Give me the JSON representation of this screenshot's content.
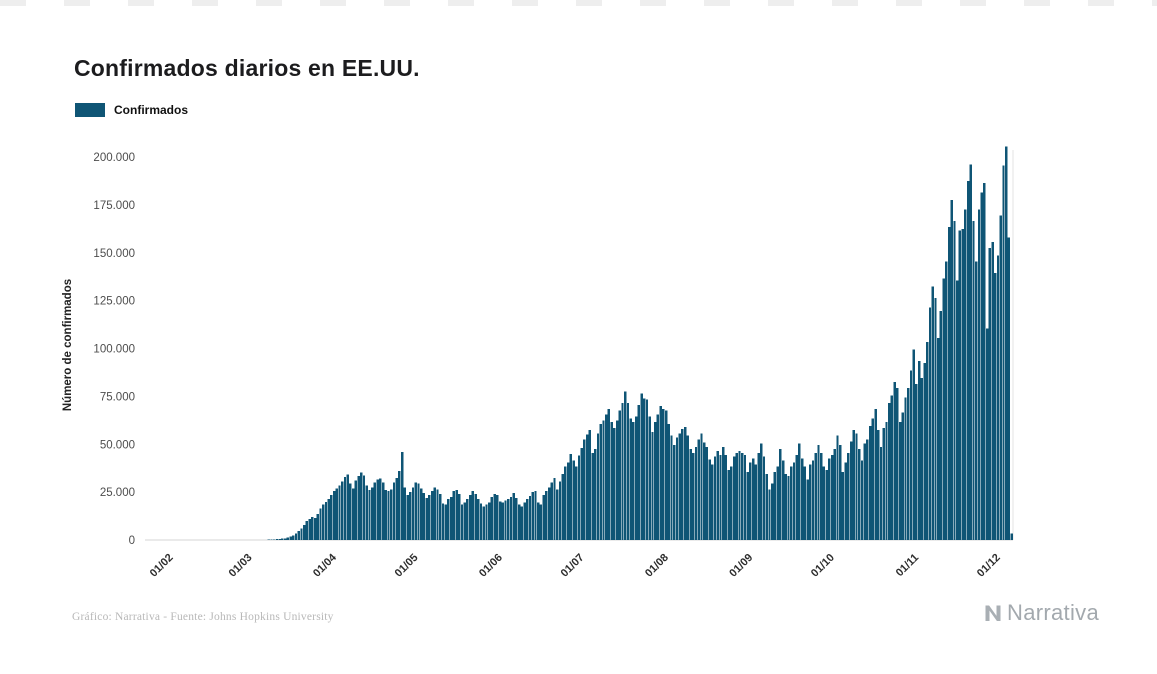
{
  "legend": {
    "items": [
      {
        "label": "Confirmados",
        "color": "#0f5575"
      }
    ]
  },
  "footer": {
    "credit": "Gráfico: Narrativa - Fuente: Johns Hopkins University",
    "brand": "Narrativa"
  },
  "chart_data": {
    "type": "bar",
    "title": "Confirmados diarios en EE.UU.",
    "xlabel": "",
    "ylabel": "Número de confirmados",
    "bar_color": "#0f5575",
    "grid": false,
    "legend_position": "top-left",
    "ylim": [
      0,
      210000
    ],
    "yticks": [
      {
        "value": 0,
        "label": "0"
      },
      {
        "value": 25000,
        "label": "25.000"
      },
      {
        "value": 50000,
        "label": "50.000"
      },
      {
        "value": 75000,
        "label": "75.000"
      },
      {
        "value": 100000,
        "label": "100.000"
      },
      {
        "value": 125000,
        "label": "125.000"
      },
      {
        "value": 150000,
        "label": "150.000"
      },
      {
        "value": 175000,
        "label": "175.000"
      },
      {
        "value": 200000,
        "label": "200.000"
      }
    ],
    "xticks": [
      {
        "index": 10,
        "label": "01/02"
      },
      {
        "index": 39,
        "label": "01/03"
      },
      {
        "index": 70,
        "label": "01/04"
      },
      {
        "index": 100,
        "label": "01/05"
      },
      {
        "index": 131,
        "label": "01/06"
      },
      {
        "index": 161,
        "label": "01/07"
      },
      {
        "index": 192,
        "label": "01/08"
      },
      {
        "index": 223,
        "label": "01/09"
      },
      {
        "index": 253,
        "label": "01/10"
      },
      {
        "index": 284,
        "label": "01/11"
      },
      {
        "index": 314,
        "label": "01/12"
      }
    ],
    "series_name": "Confirmados",
    "values": [
      1,
      0,
      1,
      0,
      3,
      0,
      0,
      0,
      2,
      3,
      1,
      0,
      3,
      0,
      2,
      1,
      1,
      0,
      0,
      2,
      1,
      2,
      1,
      3,
      0,
      1,
      2,
      0,
      3,
      1,
      5,
      6,
      4,
      3,
      8,
      6,
      10,
      14,
      18,
      25,
      30,
      45,
      70,
      90,
      120,
      170,
      230,
      330,
      420,
      550,
      700,
      900,
      1300,
      1800,
      2300,
      3500,
      4600,
      5900,
      7800,
      9900,
      11000,
      12000,
      11500,
      13500,
      16500,
      18500,
      19800,
      21500,
      23500,
      25500,
      27000,
      28500,
      30500,
      33000,
      34200,
      29500,
      27000,
      31000,
      33500,
      35200,
      33800,
      28500,
      26000,
      27500,
      30000,
      31500,
      32000,
      30000,
      26000,
      25500,
      26500,
      30000,
      32500,
      36000,
      46000,
      27500,
      23500,
      25000,
      27500,
      30000,
      29500,
      27000,
      24500,
      22000,
      23500,
      25500,
      27500,
      26500,
      24000,
      19000,
      18500,
      21500,
      22500,
      25500,
      26000,
      24000,
      18500,
      19500,
      21500,
      23500,
      25500,
      24000,
      21500,
      19000,
      17500,
      18500,
      19500,
      22500,
      24000,
      23500,
      20000,
      19500,
      20500,
      21500,
      22500,
      24500,
      22000,
      18500,
      17500,
      19500,
      21500,
      23000,
      25000,
      25500,
      19500,
      18500,
      23500,
      25500,
      27500,
      30000,
      32500,
      26500,
      30500,
      34500,
      38500,
      40500,
      45000,
      41500,
      38500,
      44000,
      48000,
      52500,
      55000,
      57500,
      45500,
      47500,
      55500,
      60500,
      62500,
      65500,
      68500,
      61500,
      58500,
      62500,
      67500,
      71500,
      77500,
      71500,
      63500,
      61500,
      64500,
      70500,
      76500,
      74000,
      73500,
      64500,
      56500,
      61500,
      65500,
      70000,
      68500,
      67500,
      60500,
      54500,
      49500,
      53500,
      55500,
      58000,
      59000,
      54500,
      47500,
      45500,
      48500,
      52500,
      55500,
      51000,
      48500,
      42000,
      39500,
      43500,
      46500,
      44500,
      48500,
      44500,
      36500,
      38500,
      43500,
      45500,
      46500,
      45500,
      44500,
      35500,
      40500,
      42500,
      39500,
      45500,
      50500,
      43500,
      34500,
      26500,
      29500,
      35500,
      38500,
      47500,
      41500,
      34500,
      33500,
      38500,
      40500,
      44500,
      50500,
      42500,
      38500,
      31500,
      39500,
      41500,
      45500,
      49500,
      45500,
      38500,
      36500,
      42500,
      44500,
      47500,
      54500,
      49500,
      35500,
      40500,
      45500,
      51500,
      57500,
      55500,
      47500,
      41500,
      50500,
      52500,
      59500,
      63500,
      68500,
      57500,
      48500,
      58500,
      61500,
      71500,
      75500,
      82500,
      79500,
      61500,
      66500,
      74500,
      79500,
      88500,
      99500,
      81500,
      93500,
      84500,
      92500,
      103500,
      121500,
      132500,
      126500,
      105500,
      119500,
      136500,
      145500,
      163500,
      177500,
      166500,
      135500,
      161500,
      162500,
      172500,
      187500,
      196000,
      166500,
      145500,
      172500,
      181500,
      186500,
      110500,
      152500,
      155500,
      139500,
      148500,
      169500,
      195500,
      205500,
      158000,
      3500
    ]
  }
}
